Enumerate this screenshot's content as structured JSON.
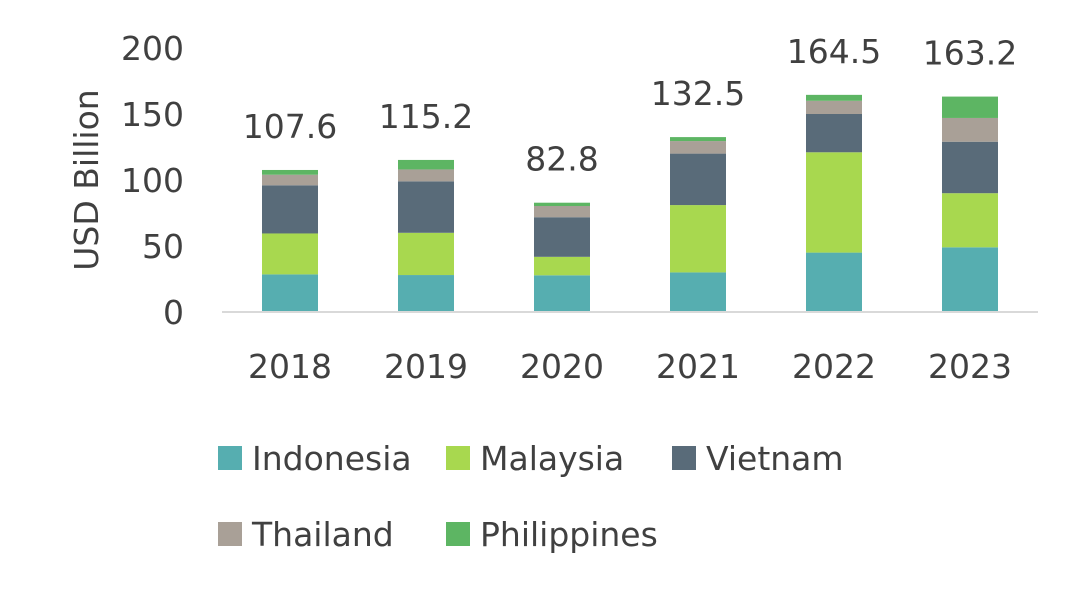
{
  "chart_data": {
    "type": "bar",
    "stacked": true,
    "title": "",
    "xlabel": "",
    "ylabel": "USD Billion",
    "ylim": [
      0,
      200
    ],
    "yticks": [
      0,
      50,
      100,
      150,
      200
    ],
    "grid": false,
    "legend_position": "bottom",
    "categories": [
      "2018",
      "2019",
      "2020",
      "2021",
      "2022",
      "2023"
    ],
    "totals": [
      "107.6",
      "115.2",
      "82.8",
      "132.5",
      "164.5",
      "163.2"
    ],
    "series": [
      {
        "name": "Indonesia",
        "color": "#56AEB0",
        "values": [
          28.5,
          28.0,
          27.8,
          30.0,
          45.0,
          49.0
        ]
      },
      {
        "name": "Malaysia",
        "color": "#A8D84F",
        "values": [
          31.0,
          32.0,
          14.0,
          51.0,
          76.0,
          41.0
        ]
      },
      {
        "name": "Vietnam",
        "color": "#596B79",
        "values": [
          36.5,
          39.0,
          30.0,
          39.0,
          29.0,
          39.0
        ]
      },
      {
        "name": "Thailand",
        "color": "#A9A097",
        "values": [
          8.0,
          9.0,
          8.5,
          9.5,
          10.0,
          18.0
        ]
      },
      {
        "name": "Philippines",
        "color": "#5DB563",
        "values": [
          3.6,
          7.2,
          2.5,
          3.0,
          4.5,
          16.2
        ]
      }
    ]
  }
}
